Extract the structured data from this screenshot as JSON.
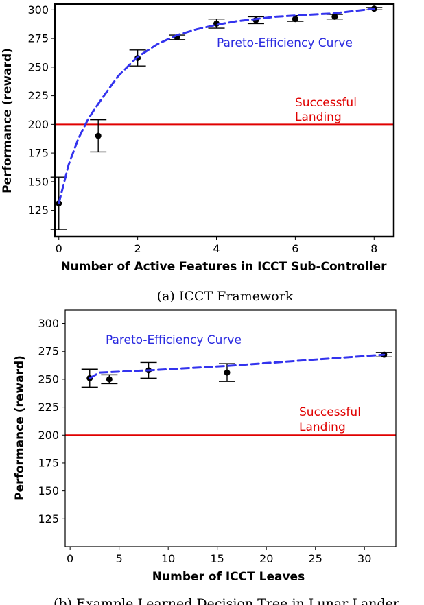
{
  "chart_data": [
    {
      "type": "scatter",
      "caption": "(a) ICCT Framework",
      "xlabel": "Number of Active Features in ICCT Sub-Controller",
      "ylabel": "Performance (reward)",
      "xlim": [
        -0.1,
        8.5
      ],
      "ylim": [
        102,
        305
      ],
      "xticks": [
        0,
        2,
        4,
        6,
        8
      ],
      "yticks": [
        125,
        150,
        175,
        200,
        225,
        250,
        275,
        300
      ],
      "points": [
        {
          "x": 0,
          "y": 131,
          "ylo": 108,
          "yhi": 154
        },
        {
          "x": 1,
          "y": 190,
          "ylo": 176,
          "yhi": 204
        },
        {
          "x": 2,
          "y": 258,
          "ylo": 251,
          "yhi": 265
        },
        {
          "x": 3,
          "y": 276,
          "ylo": 274,
          "yhi": 278
        },
        {
          "x": 4,
          "y": 288,
          "ylo": 284,
          "yhi": 292
        },
        {
          "x": 5,
          "y": 291,
          "ylo": 288,
          "yhi": 294
        },
        {
          "x": 6,
          "y": 292,
          "ylo": 290,
          "yhi": 295
        },
        {
          "x": 7,
          "y": 294,
          "ylo": 292,
          "yhi": 296
        },
        {
          "x": 8,
          "y": 301,
          "ylo": 300,
          "yhi": 302
        }
      ],
      "pareto_curve": {
        "label": "Pareto-Efficiency Curve",
        "x": [
          0,
          0.25,
          0.5,
          0.75,
          1,
          1.5,
          2,
          2.5,
          3,
          3.5,
          4,
          4.5,
          5,
          5.5,
          6,
          6.5,
          7,
          7.5,
          8
        ],
        "y": [
          131,
          165,
          188,
          205,
          218,
          242,
          259,
          270,
          278,
          283,
          287,
          290,
          292,
          294,
          295,
          296,
          297,
          299,
          301
        ]
      },
      "threshold": {
        "y": 200,
        "label_line1": "Successful",
        "label_line2": "Landing"
      }
    },
    {
      "type": "scatter",
      "caption": "(b) Example Learned Decision Tree in Lunar Lander",
      "xlabel": "Number of ICCT Leaves",
      "ylabel": "Performance (reward)",
      "xlim": [
        -0.5,
        33.2
      ],
      "ylim": [
        100,
        312
      ],
      "xticks": [
        0,
        5,
        10,
        15,
        20,
        25,
        30
      ],
      "yticks": [
        125,
        150,
        175,
        200,
        225,
        250,
        275,
        300
      ],
      "points": [
        {
          "x": 2,
          "y": 251,
          "ylo": 243,
          "yhi": 259
        },
        {
          "x": 4,
          "y": 250,
          "ylo": 246,
          "yhi": 254
        },
        {
          "x": 8,
          "y": 258,
          "ylo": 251,
          "yhi": 265
        },
        {
          "x": 16,
          "y": 256,
          "ylo": 248,
          "yhi": 264
        },
        {
          "x": 32,
          "y": 272,
          "ylo": 270,
          "yhi": 274
        }
      ],
      "pareto_curve": {
        "label": "Pareto-Efficiency Curve",
        "x": [
          2,
          3,
          8,
          16,
          32
        ],
        "y": [
          251,
          256,
          258,
          262,
          272
        ]
      },
      "threshold": {
        "y": 200,
        "label_line1": "Successful",
        "label_line2": "Landing"
      }
    }
  ]
}
